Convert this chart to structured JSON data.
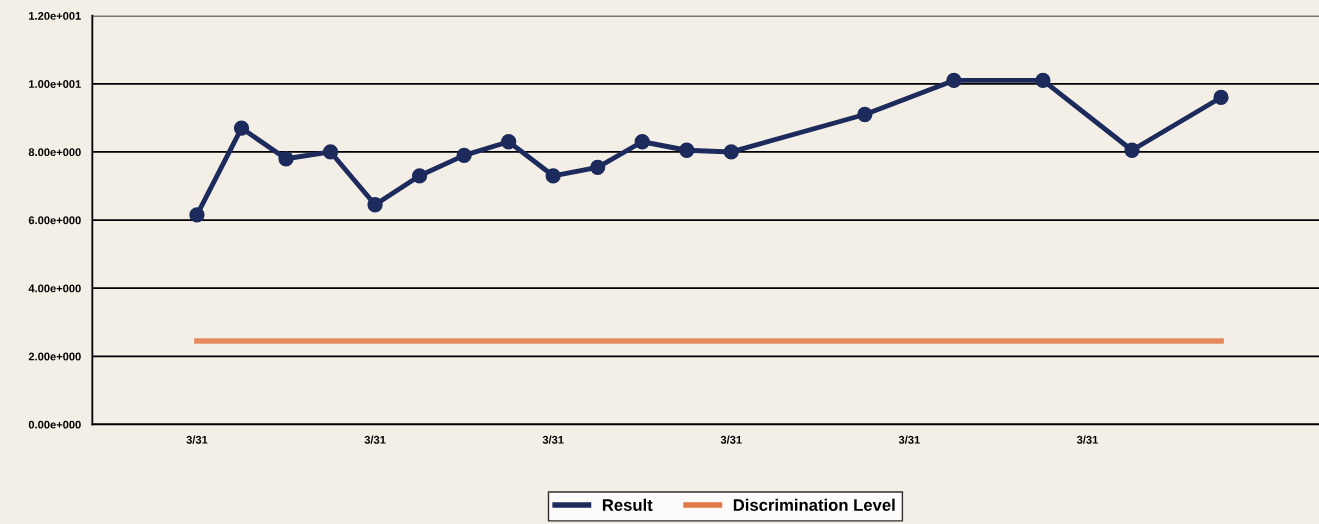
{
  "chart_data": {
    "type": "line",
    "categories": [
      "3/31",
      null,
      null,
      null,
      "3/31",
      null,
      null,
      null,
      "3/31",
      null,
      null,
      null,
      "3/31",
      null,
      null,
      null,
      "3/31",
      null,
      null,
      null,
      "3/31",
      null,
      null,
      null
    ],
    "ylim": [
      0,
      12
    ],
    "yticks": [
      {
        "value": 0,
        "label": "0.00e+000"
      },
      {
        "value": 2,
        "label": "2.00e+000"
      },
      {
        "value": 4,
        "label": "4.00e+000"
      },
      {
        "value": 6,
        "label": "6.00e+000"
      },
      {
        "value": 8,
        "label": "8.00e+000"
      },
      {
        "value": 10,
        "label": "1.00e+001"
      },
      {
        "value": 12,
        "label": "1.20e+001"
      }
    ],
    "grid": "y",
    "legend": "bottom",
    "series": [
      {
        "name": "Result",
        "color": "#1c2a5c",
        "marker": "circle",
        "values": [
          6.15,
          8.7,
          7.8,
          8.0,
          6.45,
          7.3,
          7.9,
          8.3,
          7.3,
          7.55,
          8.3,
          8.05,
          8.0,
          null,
          null,
          9.1,
          null,
          10.1,
          null,
          10.1,
          null,
          8.05,
          null,
          9.6
        ]
      },
      {
        "name": "Discrimination Level",
        "color": "#e07845",
        "marker": "none",
        "values": [
          2.45,
          2.45,
          2.45,
          2.45,
          2.45,
          2.45,
          2.45,
          2.45,
          2.45,
          2.45,
          2.45,
          2.45,
          2.45,
          2.45,
          2.45,
          2.45,
          2.45,
          2.45,
          2.45,
          2.45,
          2.45,
          2.45,
          2.45,
          2.45
        ]
      }
    ]
  }
}
